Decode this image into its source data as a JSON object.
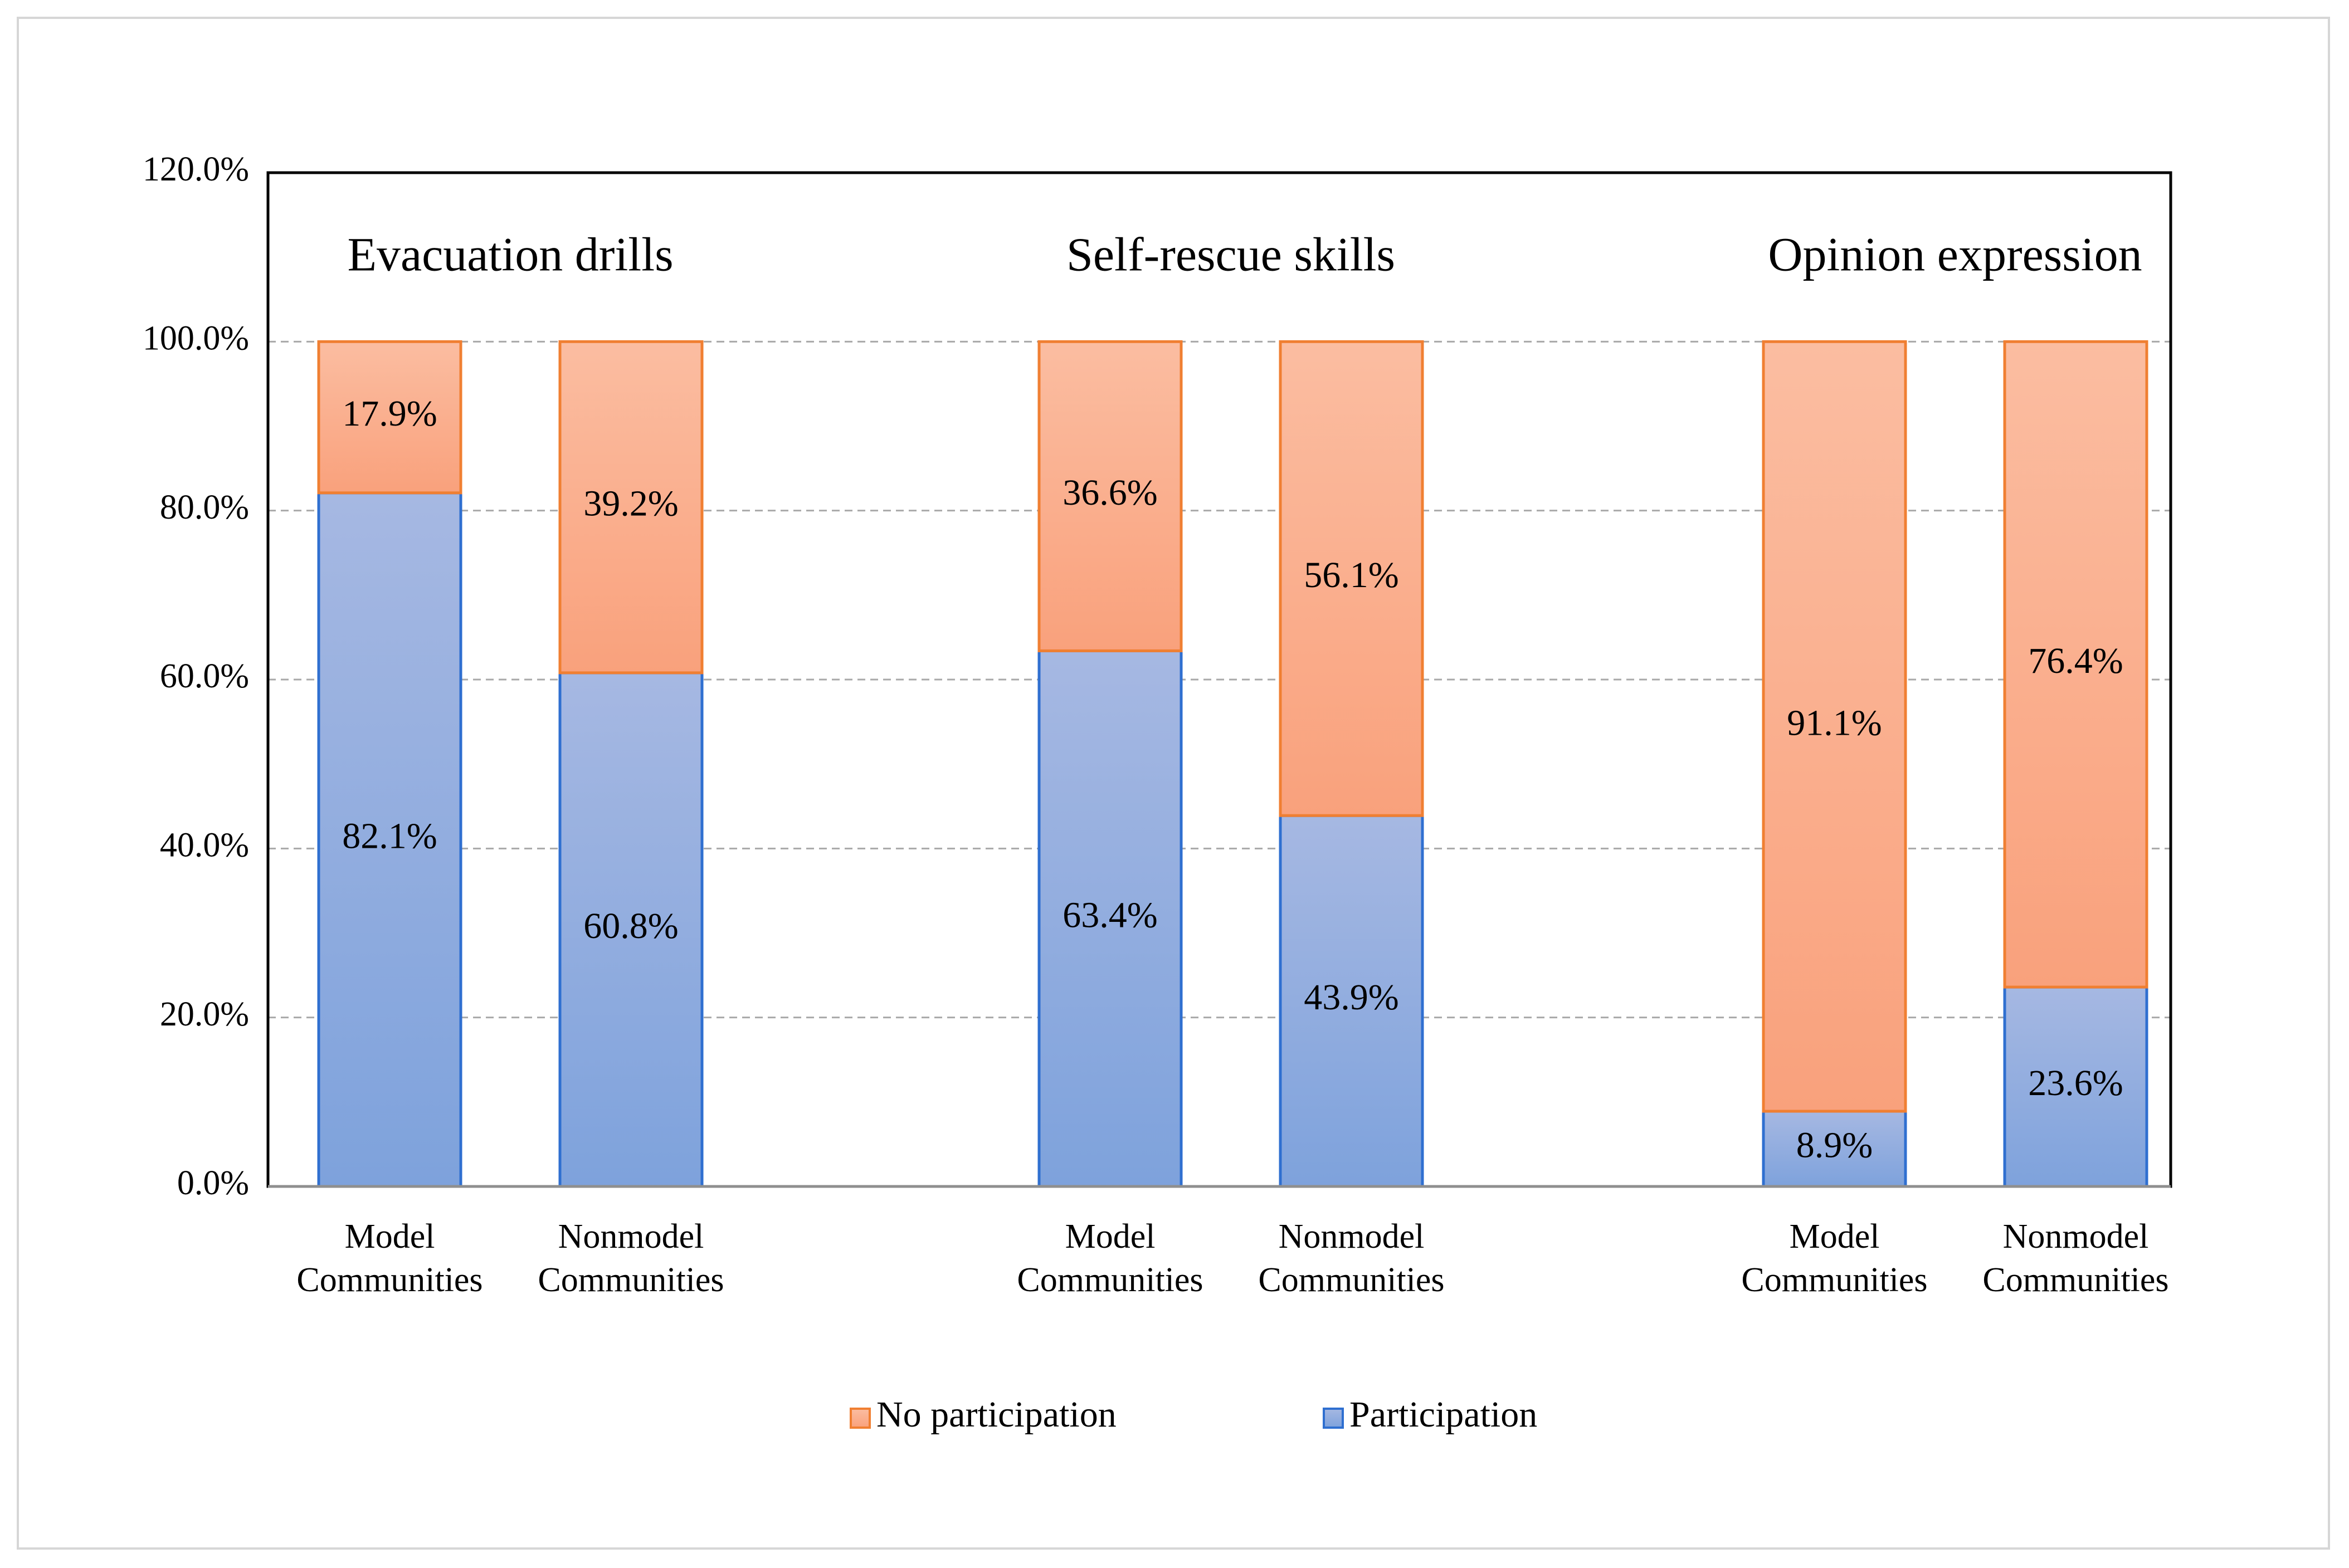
{
  "chart_data": {
    "type": "bar",
    "stacked": true,
    "groups": [
      {
        "title": "Evacuation drills",
        "categories": [
          {
            "line1": "Model",
            "line2": "Communities",
            "participation": 82.1,
            "no_participation": 17.9,
            "participation_label": "82.1%",
            "no_participation_label": "17.9%"
          },
          {
            "line1": "Nonmodel",
            "line2": "Communities",
            "participation": 60.8,
            "no_participation": 39.2,
            "participation_label": "60.8%",
            "no_participation_label": "39.2%"
          }
        ]
      },
      {
        "title": "Self-rescue skills",
        "categories": [
          {
            "line1": "Model",
            "line2": "Communities",
            "participation": 63.4,
            "no_participation": 36.6,
            "participation_label": "63.4%",
            "no_participation_label": "36.6%"
          },
          {
            "line1": "Nonmodel",
            "line2": "Communities",
            "participation": 43.9,
            "no_participation": 56.1,
            "participation_label": "43.9%",
            "no_participation_label": "56.1%"
          }
        ]
      },
      {
        "title": "Opinion expression",
        "categories": [
          {
            "line1": "Model",
            "line2": "Communities",
            "participation": 8.9,
            "no_participation": 91.1,
            "participation_label": "8.9%",
            "no_participation_label": "91.1%"
          },
          {
            "line1": "Nonmodel",
            "line2": "Communities",
            "participation": 23.6,
            "no_participation": 76.4,
            "participation_label": "23.6%",
            "no_participation_label": "76.4%"
          }
        ]
      }
    ],
    "series": [
      {
        "name": "Participation",
        "key": "participation",
        "color": "#7aa1dc",
        "edge": "#2f6fd0"
      },
      {
        "name": "No participation",
        "key": "no_participation",
        "color": "#f9a884",
        "edge": "#f07f32"
      }
    ],
    "legend": {
      "items": [
        "No participation",
        "Participation"
      ],
      "placement": "bottom-center"
    },
    "yaxis": {
      "ylim": [
        0,
        120
      ],
      "ticks": [
        0,
        20,
        40,
        60,
        80,
        100,
        120
      ],
      "tick_labels": [
        "0.0%",
        "20.0%",
        "40.0%",
        "60.0%",
        "80.0%",
        "100.0%",
        "120.0%"
      ],
      "grid": true
    }
  }
}
